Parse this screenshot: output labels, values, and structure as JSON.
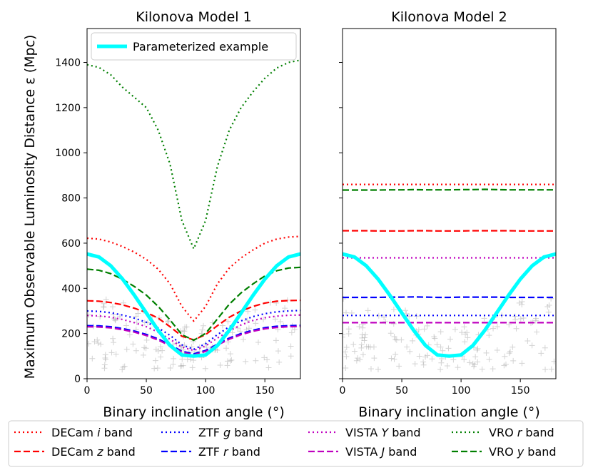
{
  "figure": {
    "ylabel": "Maximum Observable Luminosity Distance ε (Mpc)",
    "xlabel": "Binary inclination angle (°)"
  },
  "legend_entries": [
    {
      "name": "DECam i band",
      "color": "#ff0000",
      "dash": "dotted"
    },
    {
      "name": "DECam z band",
      "color": "#ff0000",
      "dash": "dashed"
    },
    {
      "name": "ZTF g band",
      "color": "#0000ff",
      "dash": "dotted"
    },
    {
      "name": "ZTF r band",
      "color": "#0000ff",
      "dash": "dashed"
    },
    {
      "name": "VISTA Y band",
      "color": "#bf00bf",
      "dash": "dotted"
    },
    {
      "name": "VISTA J band",
      "color": "#bf00bf",
      "dash": "dashed"
    },
    {
      "name": "VRO r band",
      "color": "#007f00",
      "dash": "dotted"
    },
    {
      "name": "VRO y band",
      "color": "#007f00",
      "dash": "dashed"
    }
  ],
  "chart_data": [
    {
      "type": "line",
      "title": "Kilonova Model 1",
      "xlabel": "Binary inclination angle (°)",
      "ylabel": "Maximum Observable Luminosity Distance ε (Mpc)",
      "xlim": [
        0,
        180
      ],
      "ylim": [
        0,
        1550
      ],
      "xticks": [
        0,
        50,
        100,
        150
      ],
      "yticks": [
        0,
        200,
        400,
        600,
        800,
        1000,
        1200,
        1400
      ],
      "legend": {
        "placement": "top-left",
        "entries": [
          "Parameterized example"
        ]
      },
      "x": [
        0,
        10,
        20,
        30,
        40,
        50,
        60,
        70,
        80,
        90,
        100,
        110,
        120,
        130,
        140,
        150,
        160,
        170,
        180
      ],
      "series": [
        {
          "name": "DECam i band",
          "color": "#ff0000",
          "dash": "dotted",
          "values": [
            622,
            618,
            605,
            585,
            560,
            528,
            485,
            420,
            320,
            255,
            320,
            420,
            490,
            535,
            570,
            600,
            618,
            627,
            630
          ]
        },
        {
          "name": "DECam z band",
          "color": "#ff0000",
          "dash": "dashed",
          "values": [
            345,
            343,
            337,
            327,
            312,
            293,
            268,
            230,
            188,
            172,
            195,
            235,
            272,
            300,
            320,
            335,
            343,
            346,
            347
          ]
        },
        {
          "name": "ZTF g band",
          "color": "#0000ff",
          "dash": "dotted",
          "values": [
            300,
            298,
            292,
            282,
            268,
            250,
            225,
            192,
            150,
            130,
            155,
            195,
            230,
            256,
            275,
            288,
            296,
            300,
            302
          ]
        },
        {
          "name": "ZTF r band",
          "color": "#0000ff",
          "dash": "dashed",
          "values": [
            235,
            234,
            230,
            222,
            211,
            196,
            176,
            150,
            122,
            110,
            125,
            153,
            180,
            200,
            215,
            226,
            232,
            235,
            236
          ]
        },
        {
          "name": "VISTA Y band",
          "color": "#bf00bf",
          "dash": "dotted",
          "values": [
            280,
            278,
            272,
            262,
            248,
            230,
            206,
            175,
            140,
            125,
            145,
            180,
            212,
            238,
            258,
            270,
            277,
            281,
            282
          ]
        },
        {
          "name": "VISTA J band",
          "color": "#bf00bf",
          "dash": "dashed",
          "values": [
            230,
            229,
            225,
            217,
            206,
            191,
            171,
            146,
            118,
            105,
            121,
            149,
            175,
            195,
            210,
            221,
            227,
            230,
            231
          ]
        },
        {
          "name": "VRO r band",
          "color": "#007f00",
          "dash": "dotted",
          "values": [
            1390,
            1378,
            1345,
            1290,
            1245,
            1200,
            1100,
            950,
            700,
            575,
            700,
            940,
            1100,
            1200,
            1270,
            1330,
            1375,
            1400,
            1410
          ]
        },
        {
          "name": "VRO y band",
          "color": "#007f00",
          "dash": "dashed",
          "values": [
            485,
            480,
            465,
            440,
            408,
            370,
            320,
            260,
            195,
            170,
            200,
            265,
            330,
            380,
            420,
            455,
            478,
            490,
            493
          ]
        },
        {
          "name": "Parameterized example",
          "color": "#00ffff",
          "dash": "solid",
          "values": [
            552,
            539,
            500,
            441,
            369,
            291,
            214,
            147,
            105,
            100,
            105,
            147,
            214,
            291,
            369,
            441,
            500,
            539,
            552
          ]
        }
      ]
    },
    {
      "type": "line",
      "title": "Kilonova Model 2",
      "xlabel": "Binary inclination angle (°)",
      "ylabel": "",
      "xlim": [
        0,
        180
      ],
      "ylim": [
        0,
        1550
      ],
      "xticks": [
        0,
        50,
        100,
        150
      ],
      "yticks": [
        0,
        200,
        400,
        600,
        800,
        1000,
        1200,
        1400
      ],
      "x": [
        0,
        10,
        20,
        30,
        40,
        50,
        60,
        70,
        80,
        90,
        100,
        110,
        120,
        130,
        140,
        150,
        160,
        170,
        180
      ],
      "series": [
        {
          "name": "DECam i band",
          "color": "#ff0000",
          "dash": "dotted",
          "values": [
            860,
            860,
            860,
            860,
            860,
            860,
            860,
            860,
            860,
            860,
            860,
            860,
            860,
            860,
            860,
            860,
            860,
            860,
            860
          ]
        },
        {
          "name": "VRO y band",
          "color": "#007f00",
          "dash": "dashed",
          "values": [
            835,
            835,
            835,
            835,
            836,
            836,
            837,
            836,
            836,
            836,
            837,
            837,
            838,
            837,
            836,
            836,
            836,
            836,
            836
          ]
        },
        {
          "name": "DECam z band",
          "color": "#ff0000",
          "dash": "dashed",
          "values": [
            655,
            655,
            655,
            654,
            654,
            654,
            655,
            655,
            654,
            654,
            654,
            655,
            655,
            655,
            655,
            654,
            654,
            654,
            654
          ]
        },
        {
          "name": "VISTA Y band",
          "color": "#bf00bf",
          "dash": "dotted",
          "values": [
            535,
            535,
            535,
            535,
            535,
            535,
            535,
            535,
            535,
            535,
            535,
            535,
            535,
            535,
            535,
            535,
            535,
            535,
            535
          ]
        },
        {
          "name": "ZTF r band",
          "color": "#0000ff",
          "dash": "dashed",
          "values": [
            360,
            360,
            360,
            360,
            361,
            361,
            362,
            361,
            360,
            360,
            361,
            361,
            361,
            361,
            360,
            360,
            360,
            360,
            360
          ]
        },
        {
          "name": "ZTF g band",
          "color": "#0000ff",
          "dash": "dotted",
          "values": [
            280,
            280,
            280,
            280,
            280,
            280,
            280,
            280,
            280,
            280,
            280,
            280,
            280,
            280,
            280,
            280,
            280,
            280,
            280
          ]
        },
        {
          "name": "VISTA J band",
          "color": "#bf00bf",
          "dash": "dashed",
          "values": [
            248,
            248,
            248,
            248,
            248,
            248,
            248,
            248,
            248,
            248,
            248,
            248,
            248,
            248,
            248,
            248,
            248,
            248,
            248
          ]
        },
        {
          "name": "Parameterized example",
          "color": "#00ffff",
          "dash": "solid",
          "values": [
            552,
            539,
            500,
            441,
            369,
            291,
            214,
            147,
            105,
            100,
            105,
            147,
            214,
            291,
            369,
            441,
            500,
            539,
            552
          ]
        }
      ]
    }
  ]
}
